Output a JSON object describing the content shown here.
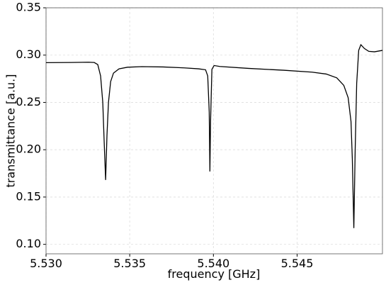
{
  "chart_data": {
    "type": "line",
    "x_label": "frequency [GHz]",
    "y_label": "transmittance [a.u.]",
    "x": [
      5.53,
      5.53148,
      5.53254,
      5.53288,
      5.53309,
      5.53326,
      5.53339,
      5.53347,
      5.53356,
      5.53364,
      5.53373,
      5.53386,
      5.53403,
      5.53436,
      5.53487,
      5.53572,
      5.53699,
      5.53826,
      5.53911,
      5.53953,
      5.53966,
      5.53975,
      5.53979,
      5.53983,
      5.53991,
      5.54004,
      5.54038,
      5.54208,
      5.54419,
      5.54589,
      5.54674,
      5.54737,
      5.54779,
      5.54805,
      5.54822,
      5.5483,
      5.54839,
      5.54847,
      5.54856,
      5.54868,
      5.54881,
      5.54902,
      5.54928,
      5.54962,
      5.5501
    ],
    "series": [
      {
        "color": "#000000",
        "values": [
          0.292,
          0.2922,
          0.2925,
          0.2922,
          0.29,
          0.278,
          0.25,
          0.21,
          0.168,
          0.215,
          0.25,
          0.272,
          0.281,
          0.2855,
          0.2872,
          0.2878,
          0.2875,
          0.2865,
          0.2855,
          0.2845,
          0.278,
          0.24,
          0.177,
          0.23,
          0.285,
          0.289,
          0.288,
          0.286,
          0.284,
          0.282,
          0.28,
          0.276,
          0.268,
          0.255,
          0.23,
          0.19,
          0.1172,
          0.2,
          0.27,
          0.305,
          0.311,
          0.307,
          0.304,
          0.3035,
          0.305
        ]
      }
    ],
    "xlim": [
      5.53,
      5.5501
    ],
    "ylim": [
      0.09,
      0.35
    ],
    "xticks": [
      {
        "value": 5.53,
        "label": "5.530"
      },
      5.535,
      {
        "value": 5.54,
        "label": "5.540"
      },
      5.545
    ],
    "yticks": [
      0.35,
      {
        "value": 0.3,
        "label": "0.30"
      },
      0.25,
      {
        "value": 0.2,
        "label": "0.20"
      },
      0.15,
      {
        "value": 0.1,
        "label": "0.10"
      }
    ],
    "grid": true
  }
}
